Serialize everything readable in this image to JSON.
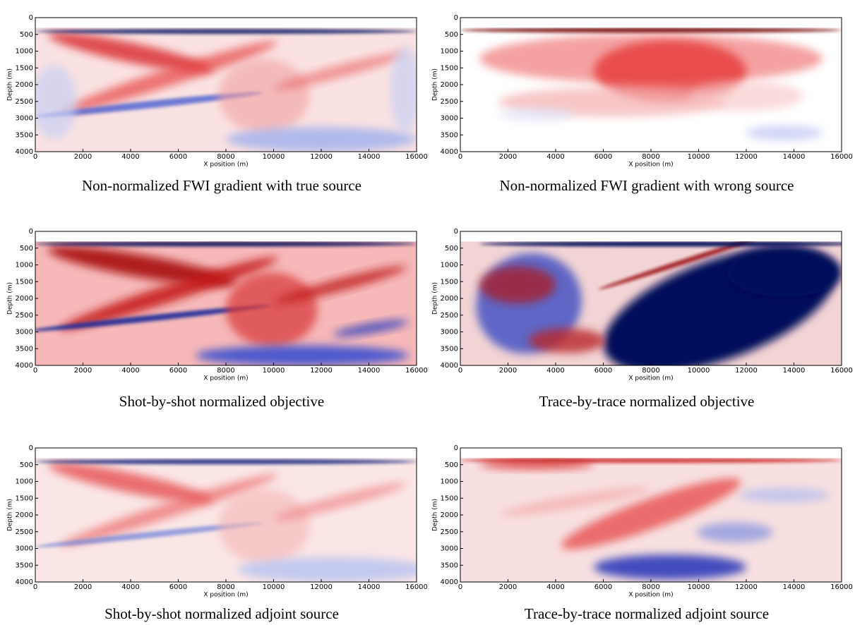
{
  "chart_data": [
    {
      "type": "heatmap",
      "title": "Non-normalized FWI gradient with true source",
      "x_label": "X position (m)",
      "y_label": "Depth (m)",
      "xlim": [
        0,
        16000
      ],
      "ylim": [
        4000,
        0
      ],
      "xticks": [
        0,
        2000,
        4000,
        6000,
        8000,
        10000,
        12000,
        14000,
        16000
      ],
      "yticks": [
        0,
        500,
        1000,
        1500,
        2000,
        2500,
        3000,
        3500,
        4000
      ]
    },
    {
      "type": "heatmap",
      "title": "Non-normalized FWI gradient with wrong source",
      "x_label": "X position (m)",
      "y_label": "Depth (m)",
      "xlim": [
        0,
        16000
      ],
      "ylim": [
        4000,
        0
      ],
      "xticks": [
        0,
        2000,
        4000,
        6000,
        8000,
        10000,
        12000,
        14000,
        16000
      ],
      "yticks": [
        0,
        500,
        1000,
        1500,
        2000,
        2500,
        3000,
        3500,
        4000
      ]
    },
    {
      "type": "heatmap",
      "title": "Shot-by-shot normalized objective",
      "x_label": "X position (m)",
      "y_label": "Depth (m)",
      "xlim": [
        0,
        16000
      ],
      "ylim": [
        4000,
        0
      ],
      "xticks": [
        0,
        2000,
        4000,
        6000,
        8000,
        10000,
        12000,
        14000,
        16000
      ],
      "yticks": [
        0,
        500,
        1000,
        1500,
        2000,
        2500,
        3000,
        3500,
        4000
      ]
    },
    {
      "type": "heatmap",
      "title": "Trace-by-trace normalized objective",
      "x_label": "X position (m)",
      "y_label": "Depth (m)",
      "xlim": [
        0,
        16000
      ],
      "ylim": [
        4000,
        0
      ],
      "xticks": [
        0,
        2000,
        4000,
        6000,
        8000,
        10000,
        12000,
        14000,
        16000
      ],
      "yticks": [
        0,
        500,
        1000,
        1500,
        2000,
        2500,
        3000,
        3500,
        4000
      ]
    },
    {
      "type": "heatmap",
      "title": "Shot-by-shot normalized adjoint source",
      "x_label": "X position (m)",
      "y_label": "Depth (m)",
      "xlim": [
        0,
        16000
      ],
      "ylim": [
        4000,
        0
      ],
      "xticks": [
        0,
        2000,
        4000,
        6000,
        8000,
        10000,
        12000,
        14000,
        16000
      ],
      "yticks": [
        0,
        500,
        1000,
        1500,
        2000,
        2500,
        3000,
        3500,
        4000
      ]
    },
    {
      "type": "heatmap",
      "title": "Trace-by-trace normalized adjoint source",
      "x_label": "X position (m)",
      "y_label": "Depth (m)",
      "xlim": [
        0,
        16000
      ],
      "ylim": [
        4000,
        0
      ],
      "xticks": [
        0,
        2000,
        4000,
        6000,
        8000,
        10000,
        12000,
        14000,
        16000
      ],
      "yticks": [
        0,
        500,
        1000,
        1500,
        2000,
        2500,
        3000,
        3500,
        4000
      ]
    }
  ]
}
